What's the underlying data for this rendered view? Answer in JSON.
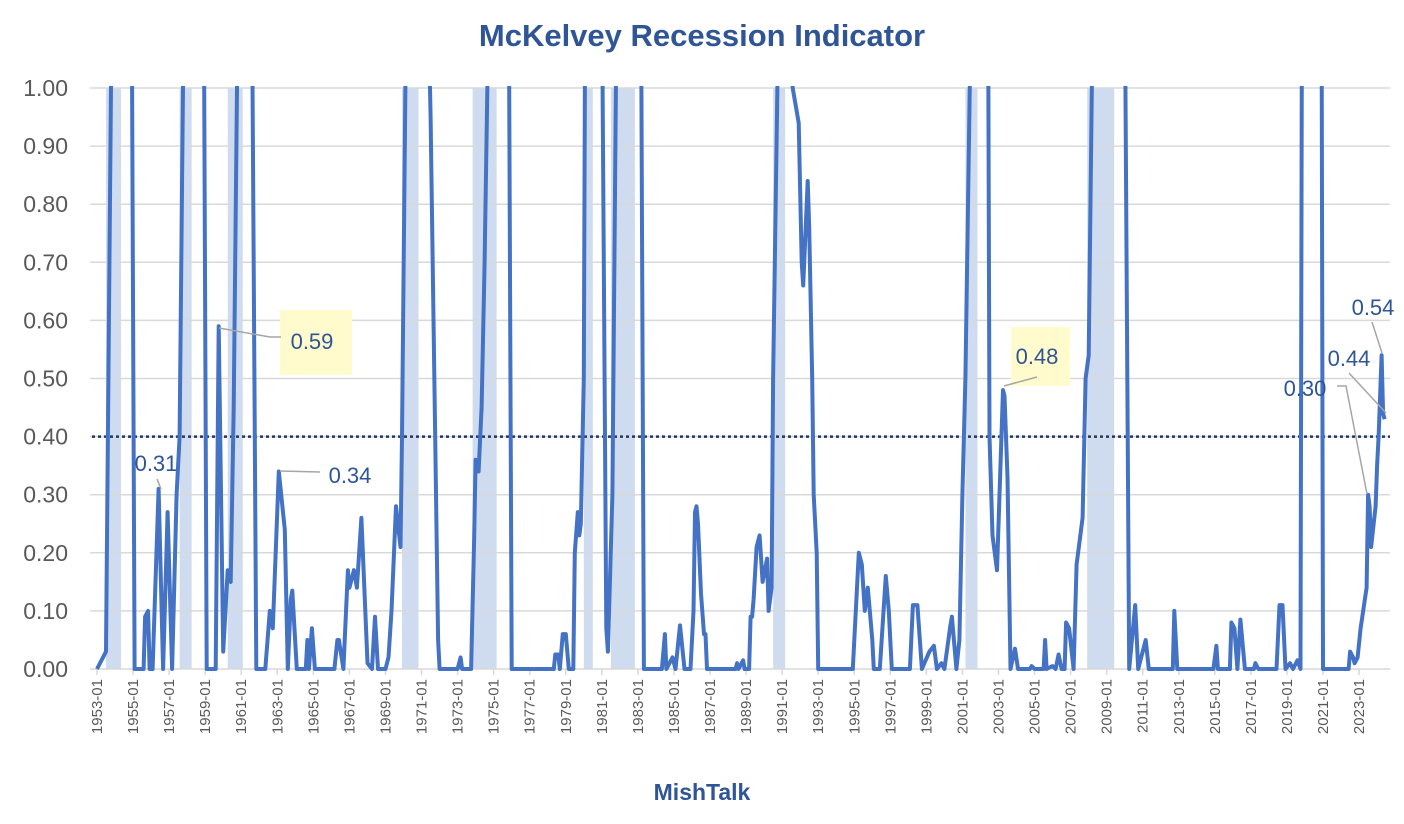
{
  "chart_data": {
    "type": "line",
    "title": "McKelvey Recession Indicator",
    "xlabel": "MishTalk",
    "ylabel": "",
    "ylim": [
      0,
      1
    ],
    "yticks": [
      "0.00",
      "0.10",
      "0.20",
      "0.30",
      "0.40",
      "0.50",
      "0.60",
      "0.70",
      "0.80",
      "0.90",
      "1.00"
    ],
    "xticks": [
      "1953-01",
      "1955-01",
      "1957-01",
      "1959-01",
      "1961-01",
      "1963-01",
      "1965-01",
      "1967-01",
      "1969-01",
      "1971-01",
      "1973-01",
      "1975-01",
      "1977-01",
      "1979-01",
      "1981-01",
      "1983-01",
      "1985-01",
      "1987-01",
      "1989-01",
      "1991-01",
      "1993-01",
      "1995-01",
      "1997-01",
      "1999-01",
      "2001-01",
      "2003-01",
      "2005-01",
      "2007-01",
      "2009-01",
      "2011-01",
      "2013-01",
      "2015-01",
      "2017-01",
      "2019-01",
      "2021-01",
      "2023-01"
    ],
    "grid": true,
    "threshold": {
      "value": 0.4,
      "style": "dotted",
      "color": "#203864"
    },
    "series_color": "#4472C4",
    "recession_color": "#CFDCEF",
    "recessions": [
      [
        "1953-07",
        "1954-05"
      ],
      [
        "1957-08",
        "1958-04"
      ],
      [
        "1960-04",
        "1961-02"
      ],
      [
        "1969-12",
        "1970-11"
      ],
      [
        "1973-11",
        "1975-03"
      ],
      [
        "1980-01",
        "1980-07"
      ],
      [
        "1981-07",
        "1982-11"
      ],
      [
        "1990-07",
        "1991-03"
      ],
      [
        "2001-03",
        "2001-11"
      ],
      [
        "2007-12",
        "2009-06"
      ]
    ],
    "series": [
      {
        "points": [
          [
            "1953-01",
            0
          ],
          [
            "1953-07",
            0.03
          ],
          [
            "1953-11",
            1.2
          ],
          [
            "1954-12",
            1.2
          ],
          [
            "1955-02",
            0
          ],
          [
            "1955-08",
            0
          ],
          [
            "1955-09",
            0.09
          ],
          [
            "1955-11",
            0.1
          ],
          [
            "1955-12",
            0
          ],
          [
            "1956-02",
            0
          ],
          [
            "1956-06",
            0.31
          ],
          [
            "1956-09",
            0
          ],
          [
            "1956-12",
            0.27
          ],
          [
            "1957-03",
            0
          ],
          [
            "1957-06",
            0.3
          ],
          [
            "1957-08",
            0.4
          ],
          [
            "1957-11",
            1.2
          ],
          [
            "1958-12",
            1.2
          ],
          [
            "1959-02",
            0
          ],
          [
            "1959-08",
            0
          ],
          [
            "1959-10",
            0.59
          ],
          [
            "1960-01",
            0.03
          ],
          [
            "1960-04",
            0.17
          ],
          [
            "1960-06",
            0.15
          ],
          [
            "1960-08",
            0.45
          ],
          [
            "1960-11",
            1.2
          ],
          [
            "1961-08",
            1.2
          ],
          [
            "1961-11",
            0
          ],
          [
            "1962-05",
            0
          ],
          [
            "1962-08",
            0.1
          ],
          [
            "1962-10",
            0.07
          ],
          [
            "1963-02",
            0.34
          ],
          [
            "1963-06",
            0.24
          ],
          [
            "1963-08",
            0
          ],
          [
            "1963-10",
            0.12
          ],
          [
            "1963-11",
            0.135
          ],
          [
            "1964-02",
            0
          ],
          [
            "1964-08",
            0
          ],
          [
            "1964-09",
            0.05
          ],
          [
            "1964-10",
            0
          ],
          [
            "1964-12",
            0.07
          ],
          [
            "1965-02",
            0
          ],
          [
            "1966-03",
            0
          ],
          [
            "1966-05",
            0.05
          ],
          [
            "1966-06",
            0.05
          ],
          [
            "1966-09",
            0
          ],
          [
            "1966-12",
            0.17
          ],
          [
            "1967-01",
            0.14
          ],
          [
            "1967-04",
            0.17
          ],
          [
            "1967-06",
            0.14
          ],
          [
            "1967-09",
            0.26
          ],
          [
            "1968-01",
            0.01
          ],
          [
            "1968-04",
            0
          ],
          [
            "1968-06",
            0.09
          ],
          [
            "1968-08",
            0
          ],
          [
            "1969-01",
            0
          ],
          [
            "1969-03",
            0.02
          ],
          [
            "1969-05",
            0.1
          ],
          [
            "1969-08",
            0.28
          ],
          [
            "1969-11",
            0.21
          ],
          [
            "1969-12",
            0.4
          ],
          [
            "1970-03",
            1.2
          ],
          [
            "1971-05",
            1.2
          ],
          [
            "1971-07",
            0.95
          ],
          [
            "1971-12",
            0.05
          ],
          [
            "1972-01",
            0
          ],
          [
            "1973-01",
            0
          ],
          [
            "1973-03",
            0.02
          ],
          [
            "1973-04",
            0
          ],
          [
            "1973-10",
            0
          ],
          [
            "1973-12",
            0.22
          ],
          [
            "1974-01",
            0.36
          ],
          [
            "1974-03",
            0.34
          ],
          [
            "1974-05",
            0.45
          ],
          [
            "1974-07",
            0.7
          ],
          [
            "1974-10",
            1.2
          ],
          [
            "1975-11",
            1.2
          ],
          [
            "1976-01",
            0
          ],
          [
            "1978-05",
            0
          ],
          [
            "1978-06",
            0.025
          ],
          [
            "1978-08",
            0.025
          ],
          [
            "1978-09",
            0
          ],
          [
            "1978-11",
            0.06
          ],
          [
            "1979-01",
            0.06
          ],
          [
            "1979-03",
            0
          ],
          [
            "1979-06",
            0
          ],
          [
            "1979-07",
            0.2
          ],
          [
            "1979-09",
            0.27
          ],
          [
            "1979-10",
            0.23
          ],
          [
            "1979-11",
            0.25
          ],
          [
            "1980-01",
            0.5
          ],
          [
            "1980-02",
            1.2
          ],
          [
            "1981-01",
            1.2
          ],
          [
            "1981-04",
            0.07
          ],
          [
            "1981-05",
            0.03
          ],
          [
            "1981-08",
            0.3
          ],
          [
            "1981-11",
            1.2
          ],
          [
            "1983-03",
            1.2
          ],
          [
            "1983-05",
            0
          ],
          [
            "1984-05",
            0
          ],
          [
            "1984-07",
            0.06
          ],
          [
            "1984-08",
            0
          ],
          [
            "1984-12",
            0.02
          ],
          [
            "1985-02",
            0
          ],
          [
            "1985-05",
            0.075
          ],
          [
            "1985-08",
            0
          ],
          [
            "1985-12",
            0
          ],
          [
            "1986-02",
            0.1
          ],
          [
            "1986-03",
            0.27
          ],
          [
            "1986-04",
            0.28
          ],
          [
            "1986-05",
            0.25
          ],
          [
            "1986-07",
            0.13
          ],
          [
            "1986-09",
            0.06
          ],
          [
            "1986-10",
            0.06
          ],
          [
            "1986-11",
            0
          ],
          [
            "1988-06",
            0
          ],
          [
            "1988-07",
            0.01
          ],
          [
            "1988-08",
            0
          ],
          [
            "1988-11",
            0.015
          ],
          [
            "1988-12",
            0
          ],
          [
            "1989-03",
            0
          ],
          [
            "1989-04",
            0.09
          ],
          [
            "1989-05",
            0.09
          ],
          [
            "1989-06",
            0.12
          ],
          [
            "1989-08",
            0.21
          ],
          [
            "1989-10",
            0.23
          ],
          [
            "1989-12",
            0.15
          ],
          [
            "1990-03",
            0.19
          ],
          [
            "1990-04",
            0.1
          ],
          [
            "1990-06",
            0.14
          ],
          [
            "1990-07",
            0.5
          ],
          [
            "1990-11",
            1.2
          ],
          [
            "1991-03",
            1.2
          ],
          [
            "1991-08",
            1.0
          ],
          [
            "1991-12",
            0.94
          ],
          [
            "1992-02",
            0.7
          ],
          [
            "1992-03",
            0.66
          ],
          [
            "1992-06",
            0.84
          ],
          [
            "1992-07",
            0.76
          ],
          [
            "1992-09",
            0.5
          ],
          [
            "1992-10",
            0.3
          ],
          [
            "1992-12",
            0.2
          ],
          [
            "1993-01",
            0
          ],
          [
            "1994-12",
            0
          ],
          [
            "1995-04",
            0.2
          ],
          [
            "1995-06",
            0.18
          ],
          [
            "1995-08",
            0.1
          ],
          [
            "1995-10",
            0.14
          ],
          [
            "1996-01",
            0.05
          ],
          [
            "1996-02",
            0
          ],
          [
            "1996-06",
            0
          ],
          [
            "1996-10",
            0.16
          ],
          [
            "1996-12",
            0.1
          ],
          [
            "1997-02",
            0
          ],
          [
            "1998-02",
            0
          ],
          [
            "1998-04",
            0.11
          ],
          [
            "1998-07",
            0.11
          ],
          [
            "1998-10",
            0
          ],
          [
            "1999-03",
            0.03
          ],
          [
            "1999-06",
            0.04
          ],
          [
            "1999-08",
            0
          ],
          [
            "1999-11",
            0.01
          ],
          [
            "2000-01",
            0
          ],
          [
            "2000-05",
            0.075
          ],
          [
            "2000-06",
            0.09
          ],
          [
            "2000-09",
            0
          ],
          [
            "2000-11",
            0.05
          ],
          [
            "2001-01",
            0.3
          ],
          [
            "2001-03",
            0.5
          ],
          [
            "2001-07",
            1.2
          ],
          [
            "2002-06",
            1.2
          ],
          [
            "2002-07",
            0.4
          ],
          [
            "2002-09",
            0.23
          ],
          [
            "2002-12",
            0.17
          ],
          [
            "2003-04",
            0.48
          ],
          [
            "2003-05",
            0.47
          ],
          [
            "2003-07",
            0.33
          ],
          [
            "2003-09",
            0
          ],
          [
            "2003-12",
            0.035
          ],
          [
            "2004-02",
            0
          ],
          [
            "2004-10",
            0
          ],
          [
            "2004-11",
            0.005
          ],
          [
            "2005-01",
            0
          ],
          [
            "2005-07",
            0
          ],
          [
            "2005-08",
            0.05
          ],
          [
            "2005-09",
            0
          ],
          [
            "2006-01",
            0.005
          ],
          [
            "2006-03",
            0
          ],
          [
            "2006-05",
            0.025
          ],
          [
            "2006-07",
            0
          ],
          [
            "2006-09",
            0
          ],
          [
            "2006-10",
            0.08
          ],
          [
            "2006-12",
            0.07
          ],
          [
            "2007-03",
            0
          ],
          [
            "2007-05",
            0.18
          ],
          [
            "2007-09",
            0.26
          ],
          [
            "2007-11",
            0.5
          ],
          [
            "2008-01",
            0.54
          ],
          [
            "2008-04",
            1.2
          ],
          [
            "2010-01",
            1.2
          ],
          [
            "2010-04",
            0
          ],
          [
            "2010-08",
            0.11
          ],
          [
            "2010-10",
            0
          ],
          [
            "2011-03",
            0.05
          ],
          [
            "2011-05",
            0
          ],
          [
            "2012-09",
            0
          ],
          [
            "2012-10",
            0.1
          ],
          [
            "2012-12",
            0
          ],
          [
            "2014-12",
            0
          ],
          [
            "2015-02",
            0.04
          ],
          [
            "2015-03",
            0
          ],
          [
            "2015-11",
            0
          ],
          [
            "2015-12",
            0.08
          ],
          [
            "2016-02",
            0.07
          ],
          [
            "2016-04",
            0
          ],
          [
            "2016-06",
            0.085
          ],
          [
            "2016-09",
            0
          ],
          [
            "2017-03",
            0
          ],
          [
            "2017-04",
            0.01
          ],
          [
            "2017-06",
            0
          ],
          [
            "2018-06",
            0
          ],
          [
            "2018-08",
            0.11
          ],
          [
            "2018-10",
            0.11
          ],
          [
            "2018-12",
            0
          ],
          [
            "2019-03",
            0.01
          ],
          [
            "2019-05",
            0
          ],
          [
            "2019-08",
            0.015
          ],
          [
            "2019-10",
            0
          ],
          [
            "2019-11",
            1.2
          ],
          [
            "2020-12",
            1.2
          ],
          [
            "2021-01",
            0
          ],
          [
            "2022-06",
            0
          ],
          [
            "2022-07",
            0.03
          ],
          [
            "2022-09",
            0.02
          ],
          [
            "2022-10",
            0.01
          ],
          [
            "2022-12",
            0.02
          ],
          [
            "2023-02",
            0.07
          ],
          [
            "2023-06",
            0.14
          ],
          [
            "2023-07",
            0.3
          ],
          [
            "2023-08",
            0.28
          ],
          [
            "2023-09",
            0.21
          ],
          [
            "2023-12",
            0.28
          ],
          [
            "2024-01",
            0.35
          ],
          [
            "2024-02",
            0.4
          ],
          [
            "2024-04",
            0.54
          ],
          [
            "2024-05",
            0.44
          ],
          [
            "2024-06",
            0.43
          ]
        ]
      }
    ],
    "annotations": [
      {
        "text": "0.31",
        "date": "1956-06",
        "value": 0.31,
        "highlighted": false
      },
      {
        "text": "0.59",
        "date": "1959-10",
        "value": 0.59,
        "highlighted": true
      },
      {
        "text": "0.34",
        "date": "1963-02",
        "value": 0.34,
        "highlighted": false
      },
      {
        "text": "0.48",
        "date": "2003-04",
        "value": 0.48,
        "highlighted": true
      },
      {
        "text": "0.30",
        "date": "2023-07",
        "value": 0.3,
        "highlighted": false
      },
      {
        "text": "0.44",
        "date": "2024-05",
        "value": 0.44,
        "highlighted": false
      },
      {
        "text": "0.54",
        "date": "2024-04",
        "value": 0.54,
        "highlighted": false
      }
    ],
    "highlight_color": "#FFFBCC"
  }
}
